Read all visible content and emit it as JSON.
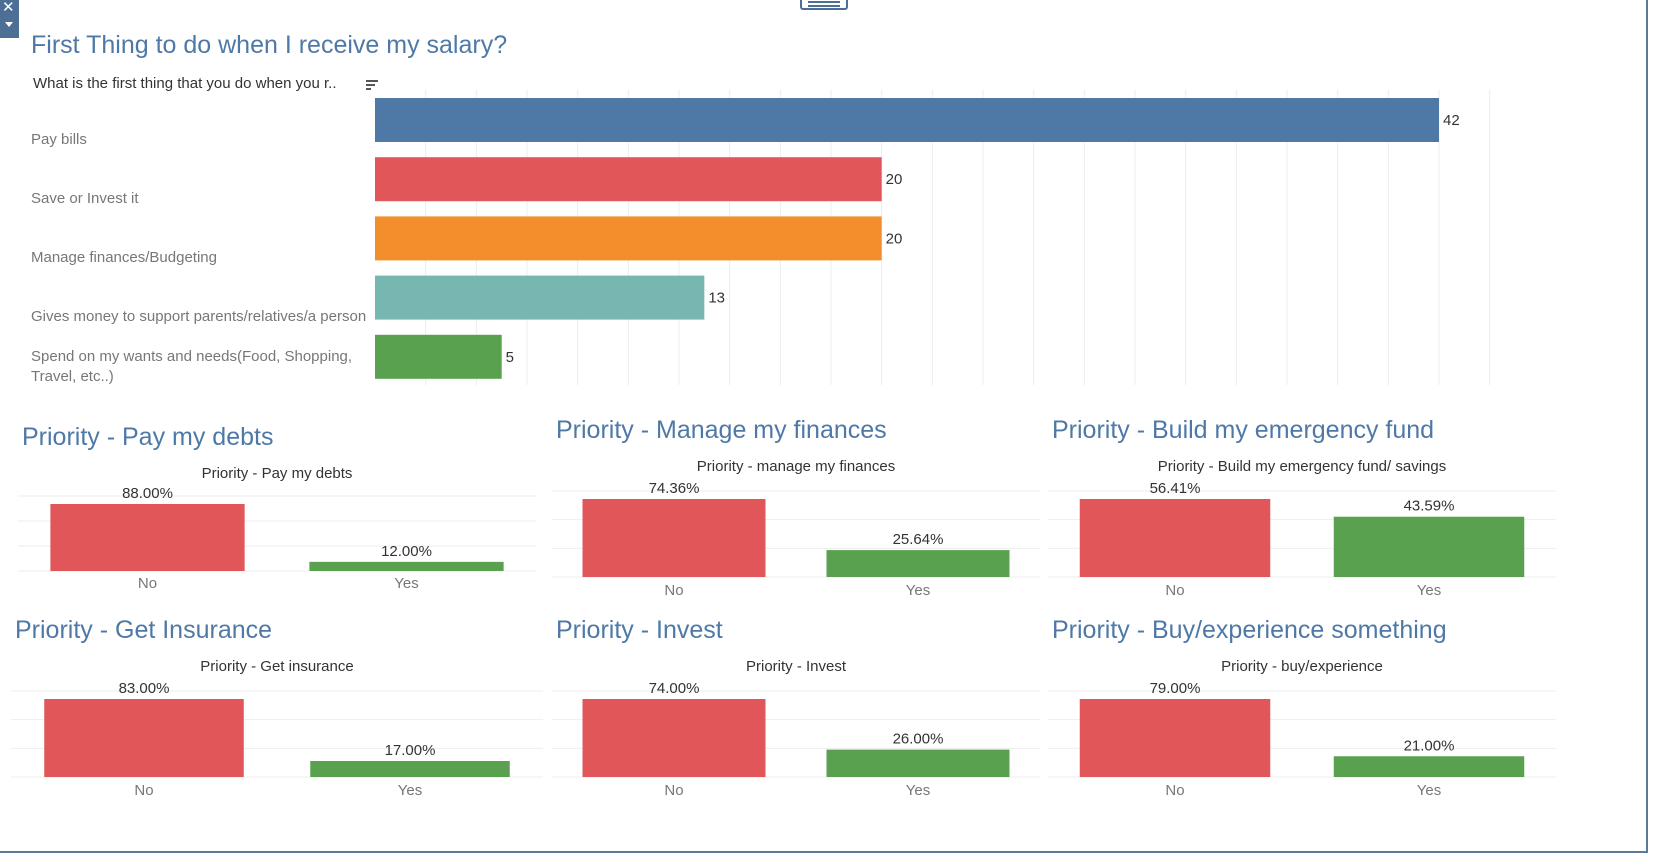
{
  "main_chart": {
    "title": "First Thing to do when I receive my salary?",
    "column_header": "What is the first thing that you do when you r..",
    "sort_icon": "sort-descending-icon"
  },
  "priority_panels": [
    {
      "heading": "Priority - Pay my debts",
      "caption": "Priority - Pay my debts"
    },
    {
      "heading": "Priority - Manage my finances",
      "caption": "Priority - manage my finances"
    },
    {
      "heading": "Priority - Build my emergency fund",
      "caption": "Priority - Build my emergency fund/ savings"
    },
    {
      "heading": "Priority - Get Insurance",
      "caption": "Priority - Get insurance"
    },
    {
      "heading": "Priority - Invest",
      "caption": "Priority - Invest"
    },
    {
      "heading": "Priority - Buy/experience something",
      "caption": "Priority - buy/experience"
    }
  ],
  "colors": {
    "title": "#4e79a7",
    "blue": "#4e79a7",
    "red": "#e15759",
    "orange": "#f28e2b",
    "teal": "#76b7b2",
    "green": "#59a14f"
  },
  "chart_data": [
    {
      "type": "bar",
      "orientation": "horizontal",
      "title": "First Thing to do when I receive my salary?",
      "categories": [
        "Pay bills",
        "Save or Invest it",
        "Manage finances/Budgeting",
        "Gives money to support parents/relatives/a person",
        "Spend on my wants and needs(Food, Shopping, Travel, etc..)"
      ],
      "values": [
        42,
        20,
        20,
        13,
        5
      ],
      "data_labels": [
        "42",
        "20",
        "20",
        "13",
        "5"
      ],
      "bar_colors": [
        "#4e79a7",
        "#e15759",
        "#f28e2b",
        "#76b7b2",
        "#59a14f"
      ],
      "xlim": [
        0,
        44.5
      ],
      "grid": "vertical"
    },
    {
      "type": "bar",
      "title": "Priority - Pay my debts",
      "categories": [
        "No",
        "Yes"
      ],
      "values": [
        88,
        12
      ],
      "data_labels": [
        "88.00%",
        "12.00%"
      ],
      "ylim": [
        0,
        100
      ],
      "grid": "horizontal"
    },
    {
      "type": "bar",
      "title": "Priority - manage my finances",
      "categories": [
        "No",
        "Yes"
      ],
      "values": [
        74.36,
        25.64
      ],
      "data_labels": [
        "74.36%",
        "25.64%"
      ],
      "ylim": [
        0,
        80
      ],
      "grid": "horizontal"
    },
    {
      "type": "bar",
      "title": "Priority - Build my emergency fund/ savings",
      "categories": [
        "No",
        "Yes"
      ],
      "values": [
        56.41,
        43.59
      ],
      "data_labels": [
        "56.41%",
        "43.59%"
      ],
      "ylim": [
        0,
        60
      ],
      "grid": "horizontal"
    },
    {
      "type": "bar",
      "title": "Priority - Get insurance",
      "categories": [
        "No",
        "Yes"
      ],
      "values": [
        83,
        17
      ],
      "data_labels": [
        "83.00%",
        "17.00%"
      ],
      "ylim": [
        0,
        90
      ],
      "grid": "horizontal"
    },
    {
      "type": "bar",
      "title": "Priority - Invest",
      "categories": [
        "No",
        "Yes"
      ],
      "values": [
        74,
        26
      ],
      "data_labels": [
        "74.00%",
        "26.00%"
      ],
      "ylim": [
        0,
        80
      ],
      "grid": "horizontal"
    },
    {
      "type": "bar",
      "title": "Priority - buy/experience",
      "categories": [
        "No",
        "Yes"
      ],
      "values": [
        79,
        21
      ],
      "data_labels": [
        "79.00%",
        "21.00%"
      ],
      "ylim": [
        0,
        85
      ],
      "grid": "horizontal"
    }
  ]
}
